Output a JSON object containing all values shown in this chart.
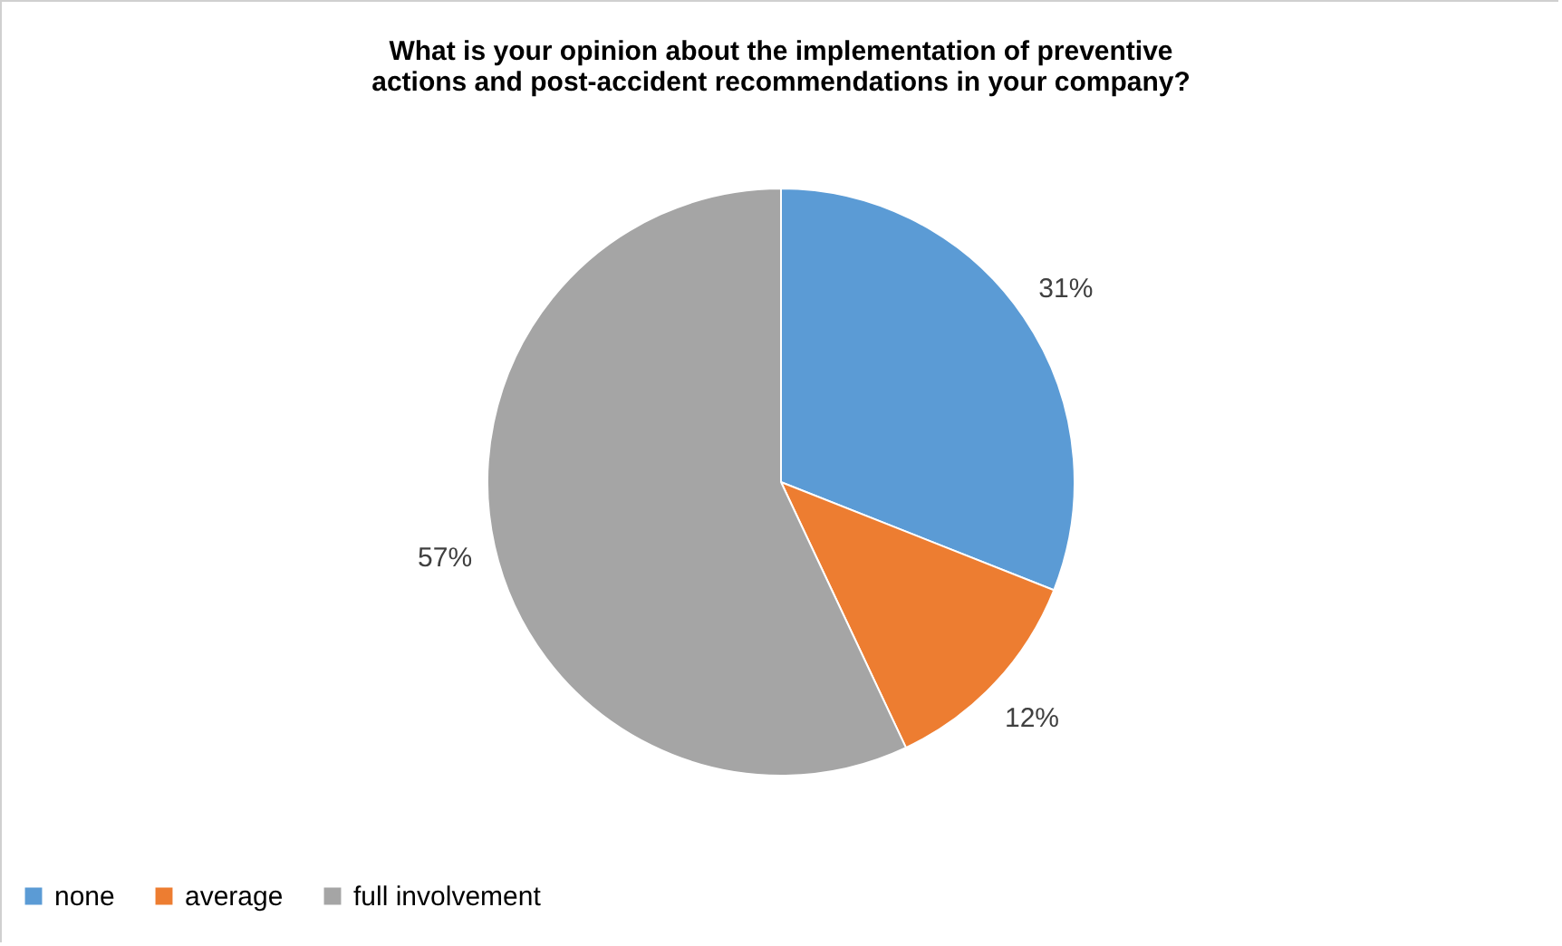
{
  "chart_data": {
    "type": "pie",
    "title": "What is your opinion about the implementation of preventive actions and post-accident recommendations in your company?",
    "categories": [
      "none",
      "average",
      "full involvement"
    ],
    "values": [
      31,
      12,
      57
    ],
    "colors": [
      "#5b9bd5",
      "#ed7d31",
      "#a5a5a5"
    ],
    "value_labels": [
      "31%",
      "12%",
      "57%"
    ],
    "legend": "bottom"
  }
}
